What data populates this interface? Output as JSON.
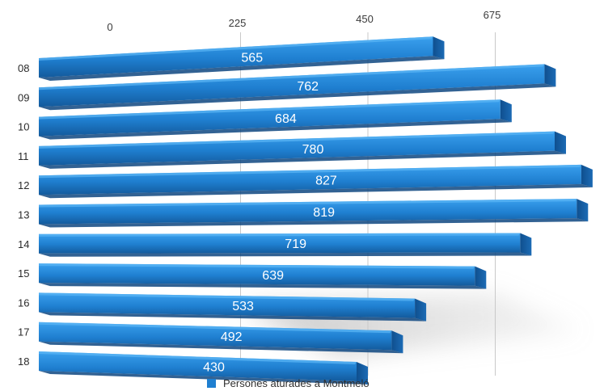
{
  "chart_data": {
    "type": "bar",
    "orientation": "horizontal",
    "categories": [
      "08",
      "09",
      "10",
      "11",
      "12",
      "13",
      "14",
      "15",
      "16",
      "17",
      "18"
    ],
    "series": [
      {
        "name": "Persones aturades a Montmeló",
        "values": [
          565,
          762,
          684,
          780,
          827,
          819,
          719,
          639,
          533,
          492,
          430
        ],
        "color": "#1f7fd0"
      }
    ],
    "xticks": [
      "0",
      "225",
      "450",
      "675"
    ],
    "xlim": [
      0,
      825
    ],
    "grid": true,
    "legend": "bottom"
  }
}
